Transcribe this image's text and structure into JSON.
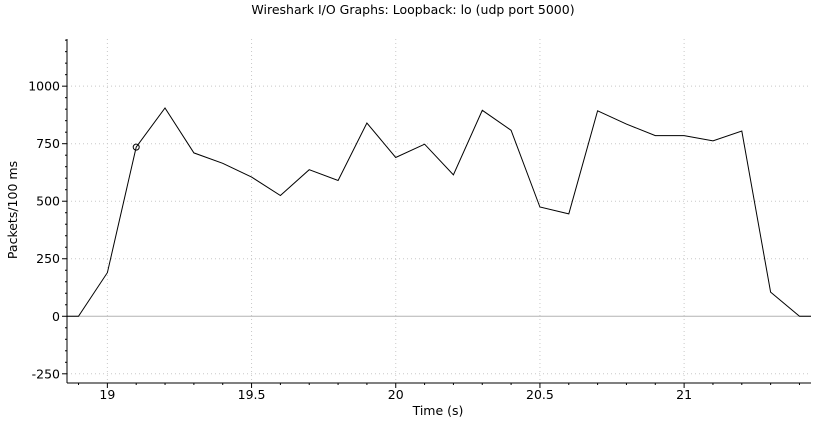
{
  "window": {
    "title": "Wireshark I/O Graphs: Loopback: lo (udp port 5000)"
  },
  "chart_data": {
    "type": "line",
    "title": "Wireshark I/O Graphs: Loopback: lo (udp port 5000)",
    "xlabel": "Time (s)",
    "ylabel": "Packets/100 ms",
    "xlim": [
      18.86,
      21.44
    ],
    "ylim": [
      -290,
      1205
    ],
    "xticks": [
      {
        "value": 19,
        "label": "19"
      },
      {
        "value": 19.5,
        "label": "19.5"
      },
      {
        "value": 20,
        "label": "20"
      },
      {
        "value": 20.5,
        "label": "20.5"
      },
      {
        "value": 21,
        "label": "21"
      }
    ],
    "yticks": [
      {
        "value": -250,
        "label": "-250"
      },
      {
        "value": 0,
        "label": "0"
      },
      {
        "value": 250,
        "label": "250"
      },
      {
        "value": 500,
        "label": "500"
      },
      {
        "value": 750,
        "label": "750"
      },
      {
        "value": 1000,
        "label": "1000"
      }
    ],
    "grid": true,
    "line_color": "#000000",
    "zero_line_color": "#b4b4b4",
    "grid_color": "#c8c8c8",
    "series": [
      {
        "x": [
          18.86,
          18.9,
          19.0,
          19.1,
          19.2,
          19.3,
          19.4,
          19.5,
          19.6,
          19.7,
          19.8,
          19.9,
          20.0,
          20.1,
          20.2,
          20.3,
          20.4,
          20.5,
          20.6,
          20.7,
          20.8,
          20.9,
          21.0,
          21.1,
          21.2,
          21.3,
          21.4,
          21.44
        ],
        "y": [
          0,
          0,
          190,
          735,
          905,
          710,
          665,
          605,
          525,
          637,
          590,
          840,
          690,
          748,
          615,
          895,
          808,
          475,
          445,
          893,
          835,
          785,
          785,
          762,
          805,
          105,
          0,
          0
        ]
      }
    ],
    "marker": {
      "x": 19.1,
      "y": 735,
      "shape": "circle"
    }
  }
}
